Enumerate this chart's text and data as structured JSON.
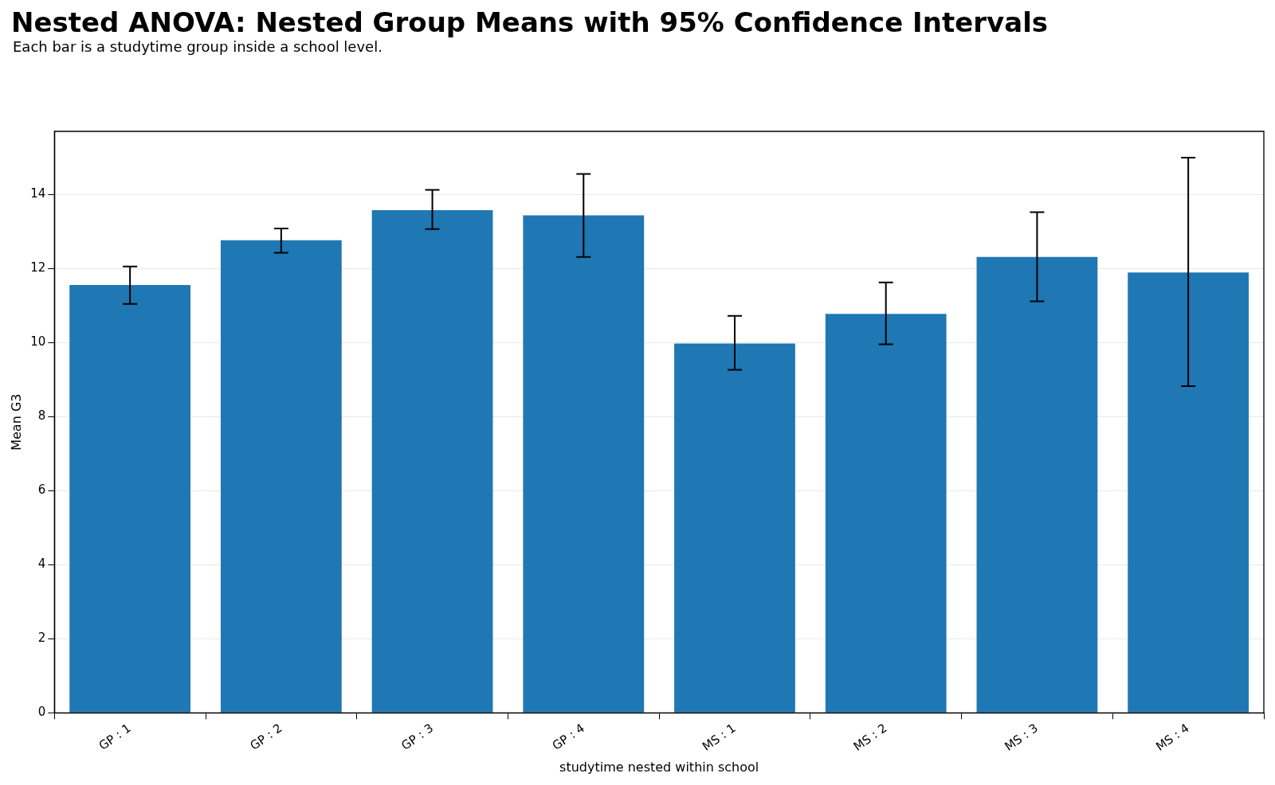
{
  "chart_data": {
    "type": "bar",
    "title": "Nested ANOVA: Nested Group Means with 95% Confidence Intervals",
    "subtitle": "Each bar is a studytime group inside a school level.",
    "xlabel": "studytime nested within school",
    "ylabel": "Mean G3",
    "categories": [
      "GP : 1",
      "GP : 2",
      "GP : 3",
      "GP : 4",
      "MS : 1",
      "MS : 2",
      "MS : 3",
      "MS : 4"
    ],
    "values": [
      11.55,
      12.76,
      13.57,
      13.43,
      9.97,
      10.77,
      12.31,
      11.89
    ],
    "errors": [
      [
        11.04,
        12.05
      ],
      [
        12.42,
        13.08
      ],
      [
        13.06,
        14.12
      ],
      [
        12.31,
        14.55
      ],
      [
        9.26,
        10.72
      ],
      [
        9.95,
        11.62
      ],
      [
        11.11,
        13.52
      ],
      [
        8.82,
        14.99
      ]
    ],
    "color": "#1f77b4",
    "ylim": [
      0,
      15.7
    ],
    "yticks": [
      0,
      2,
      4,
      6,
      8,
      10,
      12,
      14
    ],
    "grid": "y",
    "legend": false
  }
}
